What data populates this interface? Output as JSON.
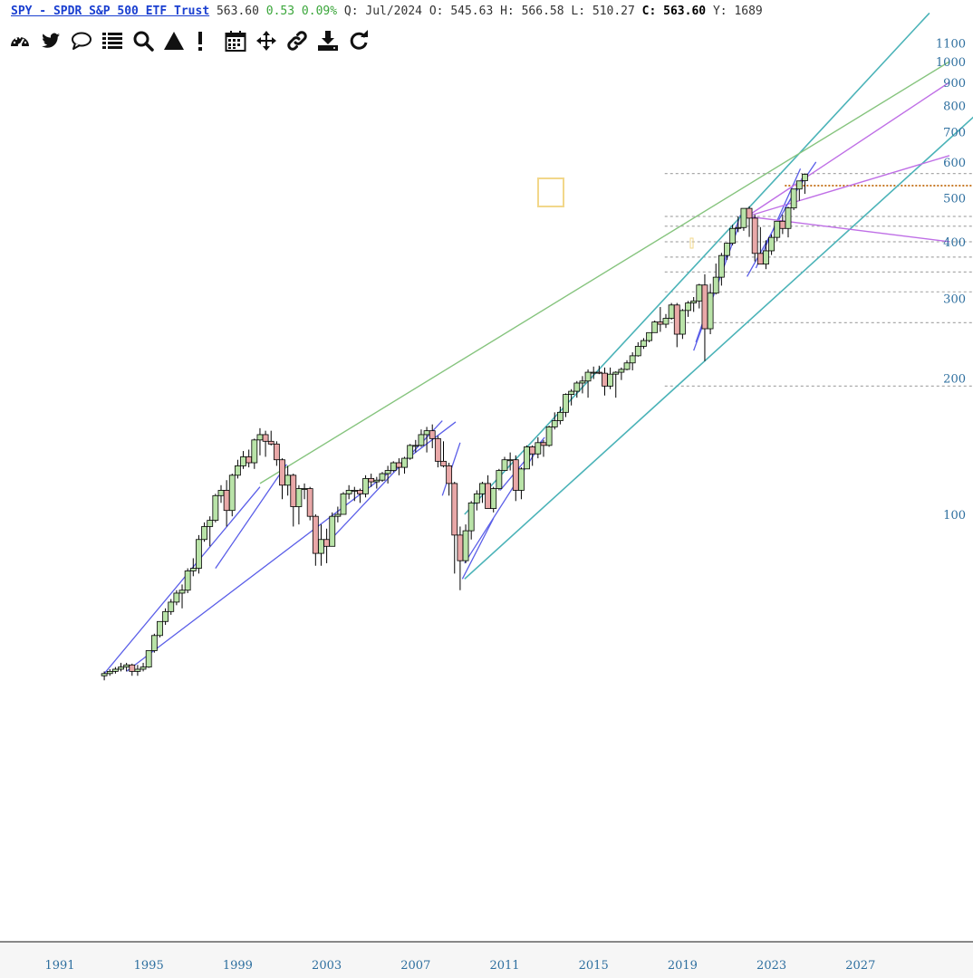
{
  "header": {
    "title": "SPY - SPDR S&P 500 ETF Trust",
    "last": "563.60",
    "change": "0.53",
    "change_pct": "0.09%",
    "period_label": "Q:",
    "period": "Jul/2024",
    "open_label": "O:",
    "open": "545.63",
    "high_label": "H:",
    "high": "566.58",
    "low_label": "L:",
    "low": "510.27",
    "close_label": "C:",
    "close": "563.60",
    "extra_label": "Y:",
    "extra": "1689"
  },
  "toolbar": [
    "dashboard-icon",
    "twitter-icon",
    "comment-icon",
    "list-icon",
    "search-icon",
    "triangle-icon",
    "alert-icon",
    "calendar-icon",
    "move-icon",
    "link-icon",
    "download-icon",
    "refresh-icon"
  ],
  "colors": {
    "up": "#b9e3a8",
    "down": "#e9a8a8",
    "blue": "#5a5ee8",
    "teal": "#4bb3b8",
    "green": "#86c47e",
    "violet": "#bf6fe6",
    "axis": "#2e6f9f",
    "hline": "#aaaaaa",
    "orange": "#c87b2a"
  },
  "chart_data": {
    "type": "candlestick",
    "scale": "log",
    "y_ticks": [
      100,
      200,
      300,
      400,
      500,
      600,
      700,
      800,
      900,
      1000,
      1100
    ],
    "x_ticks": [
      "1991",
      "1995",
      "1999",
      "2003",
      "2007",
      "2011",
      "2015",
      "2019",
      "2023",
      "2027"
    ],
    "candles": [
      [
        1993.0,
        44,
        45,
        43,
        44.5
      ],
      [
        1993.25,
        44.5,
        45.5,
        44,
        45
      ],
      [
        1993.5,
        45,
        46,
        44.5,
        45.5
      ],
      [
        1993.75,
        45.5,
        47,
        45,
        46
      ],
      [
        1994.0,
        46,
        47,
        45,
        46.5
      ],
      [
        1994.25,
        46.5,
        46.8,
        44,
        45
      ],
      [
        1994.5,
        45,
        46.5,
        44,
        45.5
      ],
      [
        1994.75,
        45.5,
        47,
        45,
        46
      ],
      [
        1995.0,
        46,
        50,
        45.8,
        50
      ],
      [
        1995.25,
        50,
        54.5,
        49.5,
        54
      ],
      [
        1995.5,
        54,
        58,
        53.5,
        58
      ],
      [
        1995.75,
        58,
        62,
        57,
        61
      ],
      [
        1996.0,
        61,
        65,
        60,
        64
      ],
      [
        1996.25,
        64,
        68,
        63,
        67
      ],
      [
        1996.5,
        67,
        70,
        62,
        68
      ],
      [
        1996.75,
        68,
        76,
        67,
        75
      ],
      [
        1997.0,
        75,
        80,
        73,
        76
      ],
      [
        1997.25,
        76,
        90,
        74,
        88
      ],
      [
        1997.5,
        88,
        96,
        87,
        94
      ],
      [
        1997.75,
        94,
        99,
        85,
        97
      ],
      [
        1998.0,
        97,
        111,
        96,
        110
      ],
      [
        1998.25,
        110,
        116,
        106,
        113
      ],
      [
        1998.5,
        113,
        119,
        94,
        102
      ],
      [
        1998.75,
        102,
        123,
        99,
        122
      ],
      [
        1999.0,
        122,
        132,
        120,
        128
      ],
      [
        1999.25,
        128,
        138,
        126,
        134
      ],
      [
        1999.5,
        134,
        139,
        127,
        130
      ],
      [
        1999.75,
        130,
        147,
        126,
        146
      ],
      [
        2000.0,
        146,
        155,
        135,
        150
      ],
      [
        2000.25,
        150,
        153,
        134,
        145
      ],
      [
        2000.5,
        145,
        153,
        142,
        143
      ],
      [
        2000.75,
        143,
        145,
        128,
        132
      ],
      [
        2001.0,
        132,
        133,
        108,
        116
      ],
      [
        2001.25,
        116,
        128,
        110,
        122
      ],
      [
        2001.5,
        122,
        123,
        94,
        104
      ],
      [
        2001.75,
        104,
        116,
        95,
        114
      ],
      [
        2002.0,
        114,
        117,
        108,
        114
      ],
      [
        2002.25,
        114,
        115,
        97,
        99
      ],
      [
        2002.5,
        99,
        100,
        77,
        82
      ],
      [
        2002.75,
        82,
        95,
        77,
        88
      ],
      [
        2003.0,
        88,
        93,
        78,
        85
      ],
      [
        2003.25,
        85,
        101,
        85,
        99
      ],
      [
        2003.5,
        99,
        104,
        96,
        100
      ],
      [
        2003.75,
        100,
        112,
        100,
        111
      ],
      [
        2004.0,
        111,
        116,
        108,
        113
      ],
      [
        2004.25,
        113,
        115,
        107,
        113
      ],
      [
        2004.5,
        113,
        114,
        106,
        111
      ],
      [
        2004.75,
        111,
        122,
        109,
        120
      ],
      [
        2005.0,
        120,
        123,
        115,
        118
      ],
      [
        2005.25,
        118,
        121,
        114,
        119
      ],
      [
        2005.5,
        119,
        124,
        118,
        123
      ],
      [
        2005.75,
        123,
        128,
        117,
        125
      ],
      [
        2006.0,
        125,
        131,
        124,
        130
      ],
      [
        2006.25,
        130,
        133,
        122,
        127
      ],
      [
        2006.5,
        127,
        134,
        123,
        133
      ],
      [
        2006.75,
        133,
        143,
        132,
        142
      ],
      [
        2007.0,
        142,
        146,
        137,
        142
      ],
      [
        2007.25,
        142,
        154,
        141,
        150
      ],
      [
        2007.5,
        150,
        156,
        137,
        153
      ],
      [
        2007.75,
        153,
        158,
        140,
        147
      ],
      [
        2008.0,
        147,
        149,
        127,
        131
      ],
      [
        2008.25,
        131,
        145,
        127,
        128
      ],
      [
        2008.5,
        128,
        130,
        110,
        117
      ],
      [
        2008.75,
        117,
        118,
        74,
        90
      ],
      [
        2009.0,
        90,
        94,
        68,
        79
      ],
      [
        2009.25,
        79,
        95,
        78,
        92
      ],
      [
        2009.5,
        92,
        107,
        88,
        106
      ],
      [
        2009.75,
        106,
        113,
        102,
        111
      ],
      [
        2010.0,
        111,
        118,
        106,
        117
      ],
      [
        2010.25,
        117,
        122,
        103,
        103
      ],
      [
        2010.5,
        103,
        115,
        101,
        114
      ],
      [
        2010.75,
        114,
        126,
        113,
        125
      ],
      [
        2011.0,
        125,
        134,
        125,
        132
      ],
      [
        2011.25,
        132,
        137,
        125,
        132
      ],
      [
        2011.5,
        132,
        135,
        107,
        113
      ],
      [
        2011.75,
        113,
        127,
        108,
        126
      ],
      [
        2012.0,
        126,
        142,
        126,
        141
      ],
      [
        2012.25,
        141,
        142,
        128,
        136
      ],
      [
        2012.5,
        136,
        148,
        133,
        144
      ],
      [
        2012.75,
        144,
        146,
        134,
        142
      ],
      [
        2013.0,
        142,
        157,
        141,
        156
      ],
      [
        2013.25,
        156,
        168,
        154,
        161
      ],
      [
        2013.5,
        161,
        173,
        158,
        168
      ],
      [
        2013.75,
        168,
        185,
        164,
        184
      ],
      [
        2014.0,
        184,
        189,
        174,
        187
      ],
      [
        2014.25,
        187,
        197,
        181,
        195
      ],
      [
        2014.5,
        195,
        202,
        185,
        197
      ],
      [
        2014.75,
        197,
        209,
        181,
        206
      ],
      [
        2015.0,
        206,
        212,
        199,
        206
      ],
      [
        2015.25,
        206,
        213,
        204,
        205
      ],
      [
        2015.5,
        205,
        211,
        183,
        192
      ],
      [
        2015.75,
        192,
        211,
        189,
        204
      ],
      [
        2016.0,
        204,
        207,
        181,
        206
      ],
      [
        2016.25,
        206,
        211,
        198,
        209
      ],
      [
        2016.5,
        209,
        219,
        208,
        216
      ],
      [
        2016.75,
        216,
        228,
        208,
        224
      ],
      [
        2017.0,
        224,
        240,
        223,
        235
      ],
      [
        2017.25,
        235,
        245,
        232,
        242
      ],
      [
        2017.5,
        242,
        252,
        240,
        252
      ],
      [
        2017.75,
        252,
        268,
        252,
        266
      ],
      [
        2018.0,
        266,
        287,
        253,
        263
      ],
      [
        2018.25,
        263,
        277,
        258,
        271
      ],
      [
        2018.5,
        271,
        293,
        269,
        290
      ],
      [
        2018.75,
        290,
        293,
        234,
        250
      ],
      [
        2019.0,
        250,
        284,
        244,
        282
      ],
      [
        2019.25,
        282,
        296,
        273,
        293
      ],
      [
        2019.5,
        293,
        302,
        280,
        296
      ],
      [
        2019.75,
        296,
        323,
        285,
        321
      ],
      [
        2020.0,
        321,
        339,
        218,
        257
      ],
      [
        2020.25,
        257,
        323,
        250,
        308
      ],
      [
        2020.5,
        308,
        358,
        306,
        334
      ],
      [
        2020.75,
        334,
        378,
        320,
        373
      ],
      [
        2021.0,
        373,
        398,
        365,
        397
      ],
      [
        2021.25,
        397,
        436,
        393,
        428
      ],
      [
        2021.5,
        428,
        455,
        420,
        430
      ],
      [
        2021.75,
        430,
        473,
        423,
        474
      ],
      [
        2022.0,
        474,
        479,
        410,
        451
      ],
      [
        2022.25,
        451,
        459,
        362,
        377
      ],
      [
        2022.5,
        377,
        431,
        357,
        357
      ],
      [
        2022.75,
        357,
        403,
        348,
        382
      ],
      [
        2023.0,
        382,
        415,
        374,
        409
      ],
      [
        2023.25,
        409,
        444,
        401,
        444
      ],
      [
        2023.5,
        444,
        459,
        416,
        428
      ],
      [
        2023.75,
        428,
        478,
        409,
        475
      ],
      [
        2024.0,
        475,
        524,
        470,
        523
      ],
      [
        2024.25,
        523,
        546,
        493,
        545
      ],
      [
        2024.5,
        545.63,
        566.58,
        510.27,
        563.6
      ]
    ]
  }
}
